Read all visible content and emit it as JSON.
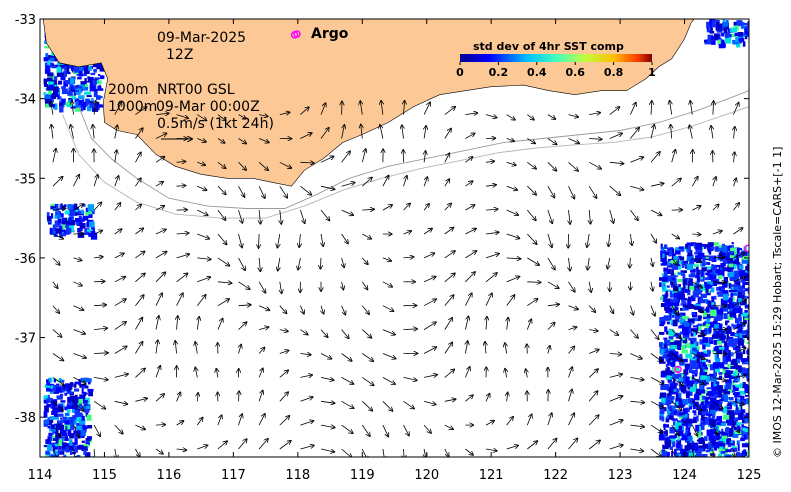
{
  "map": {
    "lon_range": [
      114,
      125
    ],
    "lat_range": [
      -38.5,
      -33
    ],
    "x_ticks": [
      "114",
      "115",
      "116",
      "117",
      "118",
      "119",
      "120",
      "121",
      "122",
      "123",
      "124",
      "125"
    ],
    "y_ticks": [
      "-33",
      "-34",
      "-35",
      "-36",
      "-37",
      "-38"
    ],
    "land_color": "#fcc896",
    "ocean_color": "#ffffff"
  },
  "annotations": {
    "date": "09-Mar-2025",
    "hour": "12Z",
    "depth_200": "200m",
    "depth_1000": "1000m",
    "product": "NRT00 GSL",
    "product_time": "09-Mar 00:00Z",
    "vector_scale": "0.5m/s (1kt 24h)"
  },
  "argo": {
    "label": "Argo",
    "color": "#ff00ff",
    "floats": [
      {
        "lon": 117.95,
        "lat": -33.2
      },
      {
        "lon": 124.98,
        "lat": -35.88
      },
      {
        "lon": 123.9,
        "lat": -37.4
      }
    ]
  },
  "colorbar": {
    "title": "std dev of 4hr SST comp",
    "ticks": [
      "0",
      "0.2",
      "0.4",
      "0.6",
      "0.8",
      "1"
    ],
    "range": [
      0,
      1
    ]
  },
  "side_credit": "© IMOS 12-Mar-2025 15:29 Hobart; Tscale=CARS+[-1 1]",
  "coastline": [
    [
      114.05,
      -33.0
    ],
    [
      114.1,
      -33.3
    ],
    [
      114.3,
      -33.55
    ],
    [
      114.6,
      -33.6
    ],
    [
      114.95,
      -33.55
    ],
    [
      115.05,
      -33.75
    ],
    [
      114.98,
      -34.05
    ],
    [
      115.0,
      -34.3
    ],
    [
      115.2,
      -34.4
    ],
    [
      115.5,
      -34.45
    ],
    [
      115.8,
      -34.7
    ],
    [
      116.1,
      -34.85
    ],
    [
      116.5,
      -34.95
    ],
    [
      116.9,
      -35.0
    ],
    [
      117.3,
      -35.0
    ],
    [
      117.6,
      -35.05
    ],
    [
      117.9,
      -35.1
    ],
    [
      118.1,
      -34.9
    ],
    [
      118.4,
      -34.75
    ],
    [
      118.7,
      -34.55
    ],
    [
      119.0,
      -34.45
    ],
    [
      119.4,
      -34.3
    ],
    [
      119.8,
      -34.1
    ],
    [
      120.2,
      -33.95
    ],
    [
      120.6,
      -33.9
    ],
    [
      121.0,
      -33.85
    ],
    [
      121.5,
      -33.83
    ],
    [
      121.9,
      -33.9
    ],
    [
      122.3,
      -33.95
    ],
    [
      122.7,
      -33.9
    ],
    [
      123.1,
      -33.9
    ],
    [
      123.4,
      -33.75
    ],
    [
      123.6,
      -33.6
    ],
    [
      123.8,
      -33.5
    ],
    [
      124.0,
      -33.25
    ],
    [
      124.1,
      -33.05
    ],
    [
      124.15,
      -33.0
    ]
  ],
  "isobath_200": [
    [
      114.6,
      -34.1
    ],
    [
      114.8,
      -34.5
    ],
    [
      115.1,
      -34.75
    ],
    [
      115.5,
      -35.0
    ],
    [
      116.0,
      -35.25
    ],
    [
      116.6,
      -35.35
    ],
    [
      117.2,
      -35.38
    ],
    [
      117.8,
      -35.38
    ],
    [
      118.3,
      -35.2
    ],
    [
      118.8,
      -35.0
    ],
    [
      119.4,
      -34.85
    ],
    [
      120.0,
      -34.75
    ],
    [
      120.6,
      -34.65
    ],
    [
      121.2,
      -34.55
    ],
    [
      121.8,
      -34.5
    ],
    [
      122.4,
      -34.45
    ],
    [
      123.0,
      -34.4
    ],
    [
      123.6,
      -34.3
    ],
    [
      124.2,
      -34.15
    ],
    [
      125.0,
      -33.9
    ]
  ],
  "isobath_1000": [
    [
      114.35,
      -34.2
    ],
    [
      114.6,
      -34.7
    ],
    [
      115.0,
      -35.05
    ],
    [
      115.5,
      -35.3
    ],
    [
      116.1,
      -35.45
    ],
    [
      116.8,
      -35.5
    ],
    [
      117.5,
      -35.5
    ],
    [
      118.1,
      -35.35
    ],
    [
      118.7,
      -35.15
    ],
    [
      119.3,
      -35.0
    ],
    [
      119.9,
      -34.88
    ],
    [
      120.5,
      -34.78
    ],
    [
      121.1,
      -34.68
    ],
    [
      121.7,
      -34.62
    ],
    [
      122.3,
      -34.58
    ],
    [
      122.9,
      -34.55
    ],
    [
      123.5,
      -34.48
    ],
    [
      124.1,
      -34.35
    ],
    [
      125.0,
      -34.1
    ]
  ],
  "sst_patches": [
    {
      "lon": 114.05,
      "lat": -33.0,
      "w": 0.9,
      "h": 1.1
    },
    {
      "lon": 114.1,
      "lat": -35.3,
      "w": 0.7,
      "h": 0.4
    },
    {
      "lon": 123.6,
      "lat": -35.8,
      "w": 1.4,
      "h": 2.7
    },
    {
      "lon": 114.05,
      "lat": -37.5,
      "w": 0.7,
      "h": 1.0
    },
    {
      "lon": 124.3,
      "lat": -33.0,
      "w": 0.7,
      "h": 0.3
    }
  ]
}
